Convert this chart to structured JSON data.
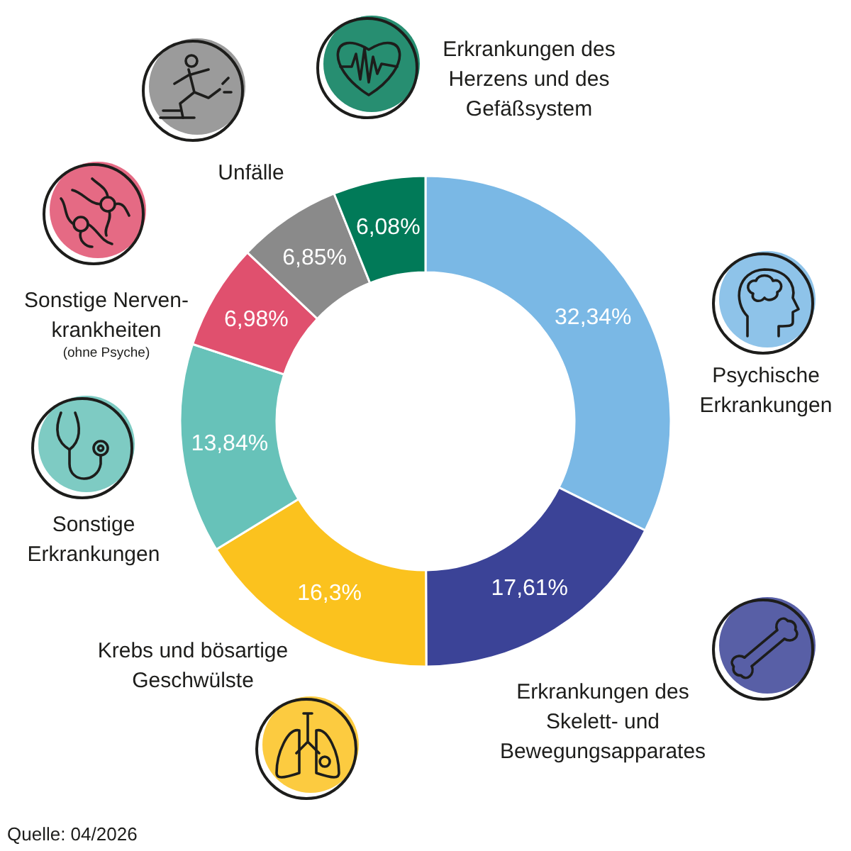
{
  "chart_data": {
    "type": "donut",
    "categories": [
      "Psychische\nErkrankungen",
      "Erkrankungen des\nSkelett- und\nBewegungsapparates",
      "Krebs und bösartige\nGeschwülste",
      "Sonstige\nErkrankungen",
      "Sonstige Nerven-\nkrankheiten\n(ohne Psyche)",
      "Unfälle",
      "Erkrankungen des\nHerzens und des\nGefäßsystem"
    ],
    "values": [
      32.34,
      17.61,
      16.3,
      13.84,
      6.98,
      6.85,
      6.08
    ],
    "colors": [
      "#7ab8e5",
      "#3b4397",
      "#fbc21e",
      "#67c2b9",
      "#e0506e",
      "#8a8a8a",
      "#017a58"
    ],
    "value_labels": [
      "32,34%",
      "17,61%",
      "16,3%",
      "13,84%",
      "6,98%",
      "6,85%",
      "6,08%"
    ],
    "annotations": [
      "Quelle: 04/2026"
    ]
  }
}
